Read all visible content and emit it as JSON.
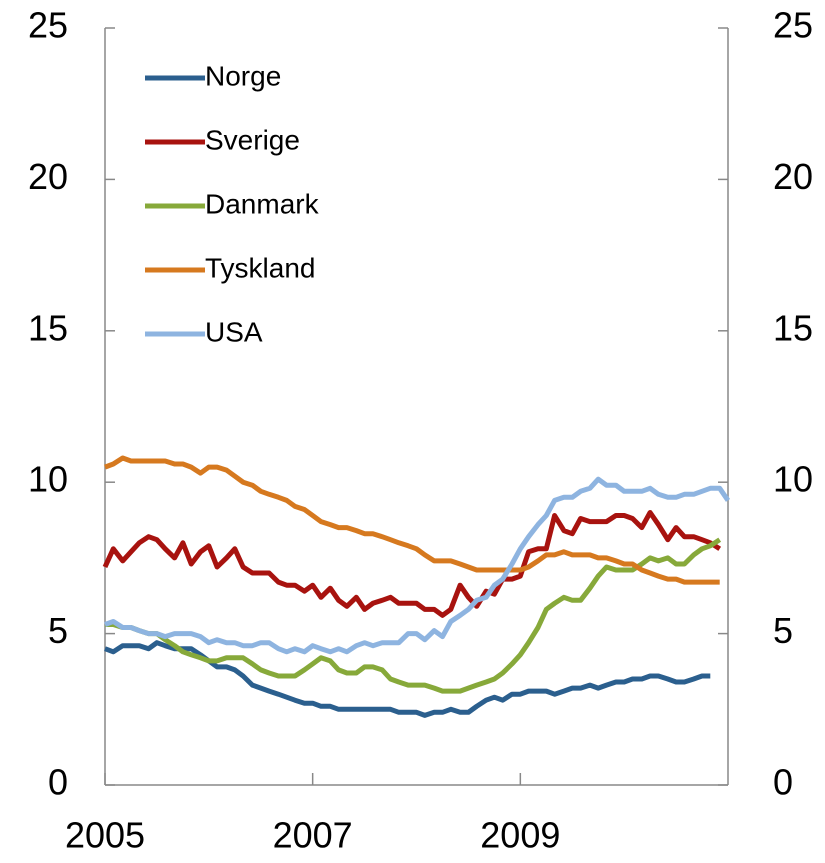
{
  "chart_data": {
    "type": "line",
    "x": [
      2005,
      2005.08,
      2005.17,
      2005.25,
      2005.33,
      2005.42,
      2005.5,
      2005.58,
      2005.67,
      2005.75,
      2005.83,
      2005.92,
      2006,
      2006.08,
      2006.17,
      2006.25,
      2006.33,
      2006.42,
      2006.5,
      2006.58,
      2006.67,
      2006.75,
      2006.83,
      2006.92,
      2007,
      2007.08,
      2007.17,
      2007.25,
      2007.33,
      2007.42,
      2007.5,
      2007.58,
      2007.67,
      2007.75,
      2007.83,
      2007.92,
      2008,
      2008.08,
      2008.17,
      2008.25,
      2008.33,
      2008.42,
      2008.5,
      2008.58,
      2008.67,
      2008.75,
      2008.83,
      2008.92,
      2009,
      2009.08,
      2009.17,
      2009.25,
      2009.33,
      2009.42,
      2009.5,
      2009.58,
      2009.67,
      2009.75,
      2009.83,
      2009.92,
      2010,
      2010.08,
      2010.17,
      2010.25,
      2010.33,
      2010.42,
      2010.5,
      2010.58,
      2010.67,
      2010.75,
      2010.83,
      2010.92,
      2011
    ],
    "series": [
      {
        "name": "Norge",
        "color": "#2b5f8e",
        "values": [
          4.5,
          4.4,
          4.6,
          4.6,
          4.6,
          4.5,
          4.7,
          4.6,
          4.5,
          4.5,
          4.5,
          4.3,
          4.1,
          3.9,
          3.9,
          3.8,
          3.6,
          3.3,
          3.2,
          3.1,
          3.0,
          2.9,
          2.8,
          2.7,
          2.7,
          2.6,
          2.6,
          2.5,
          2.5,
          2.5,
          2.5,
          2.5,
          2.5,
          2.5,
          2.4,
          2.4,
          2.4,
          2.3,
          2.4,
          2.4,
          2.5,
          2.4,
          2.4,
          2.6,
          2.8,
          2.9,
          2.8,
          3.0,
          3.0,
          3.1,
          3.1,
          3.1,
          3.0,
          3.1,
          3.2,
          3.2,
          3.3,
          3.2,
          3.3,
          3.4,
          3.4,
          3.5,
          3.5,
          3.6,
          3.6,
          3.5,
          3.4,
          3.4,
          3.5,
          3.6,
          3.6,
          null,
          null
        ]
      },
      {
        "name": "Sverige",
        "color": "#a8130f",
        "values": [
          7.2,
          7.8,
          7.4,
          7.7,
          8.0,
          8.2,
          8.1,
          7.8,
          7.5,
          8.0,
          7.3,
          7.7,
          7.9,
          7.2,
          7.5,
          7.8,
          7.2,
          7.0,
          7.0,
          7.0,
          6.7,
          6.6,
          6.6,
          6.4,
          6.6,
          6.2,
          6.5,
          6.1,
          5.9,
          6.2,
          5.8,
          6.0,
          6.1,
          6.2,
          6.0,
          6.0,
          6.0,
          5.8,
          5.8,
          5.6,
          5.8,
          6.6,
          6.2,
          5.9,
          6.4,
          6.3,
          6.8,
          6.8,
          6.9,
          7.7,
          7.8,
          7.8,
          8.9,
          8.4,
          8.3,
          8.8,
          8.7,
          8.7,
          8.7,
          8.9,
          8.9,
          8.8,
          8.5,
          9.0,
          8.6,
          8.1,
          8.5,
          8.2,
          8.2,
          8.1,
          8.0,
          7.8,
          null
        ]
      },
      {
        "name": "Danmark",
        "color": "#87a93a",
        "values": [
          5.3,
          5.3,
          5.2,
          5.2,
          5.1,
          5.0,
          5.0,
          4.8,
          4.6,
          4.4,
          4.3,
          4.2,
          4.1,
          4.1,
          4.2,
          4.2,
          4.2,
          4.0,
          3.8,
          3.7,
          3.6,
          3.6,
          3.6,
          3.8,
          4.0,
          4.2,
          4.1,
          3.8,
          3.7,
          3.7,
          3.9,
          3.9,
          3.8,
          3.5,
          3.4,
          3.3,
          3.3,
          3.3,
          3.2,
          3.1,
          3.1,
          3.1,
          3.2,
          3.3,
          3.4,
          3.5,
          3.7,
          4.0,
          4.3,
          4.7,
          5.2,
          5.8,
          6.0,
          6.2,
          6.1,
          6.1,
          6.5,
          6.9,
          7.2,
          7.1,
          7.1,
          7.1,
          7.3,
          7.5,
          7.4,
          7.5,
          7.3,
          7.3,
          7.6,
          7.8,
          7.9,
          8.1,
          null
        ]
      },
      {
        "name": "Tyskland",
        "color": "#d6791f",
        "values": [
          10.5,
          10.6,
          10.8,
          10.7,
          10.7,
          10.7,
          10.7,
          10.7,
          10.6,
          10.6,
          10.5,
          10.3,
          10.5,
          10.5,
          10.4,
          10.2,
          10.0,
          9.9,
          9.7,
          9.6,
          9.5,
          9.4,
          9.2,
          9.1,
          8.9,
          8.7,
          8.6,
          8.5,
          8.5,
          8.4,
          8.3,
          8.3,
          8.2,
          8.1,
          8.0,
          7.9,
          7.8,
          7.6,
          7.4,
          7.4,
          7.4,
          7.3,
          7.2,
          7.1,
          7.1,
          7.1,
          7.1,
          7.1,
          7.1,
          7.2,
          7.4,
          7.6,
          7.6,
          7.7,
          7.6,
          7.6,
          7.6,
          7.5,
          7.5,
          7.4,
          7.3,
          7.3,
          7.1,
          7.0,
          6.9,
          6.8,
          6.8,
          6.7,
          6.7,
          6.7,
          6.7,
          6.7,
          null
        ]
      },
      {
        "name": "USA",
        "color": "#8eb4e0",
        "values": [
          5.3,
          5.4,
          5.2,
          5.2,
          5.1,
          5.0,
          5.0,
          4.9,
          5.0,
          5.0,
          5.0,
          4.9,
          4.7,
          4.8,
          4.7,
          4.7,
          4.6,
          4.6,
          4.7,
          4.7,
          4.5,
          4.4,
          4.5,
          4.4,
          4.6,
          4.5,
          4.4,
          4.5,
          4.4,
          4.6,
          4.7,
          4.6,
          4.7,
          4.7,
          4.7,
          5.0,
          5.0,
          4.8,
          5.1,
          4.9,
          5.4,
          5.6,
          5.8,
          6.1,
          6.2,
          6.6,
          6.8,
          7.3,
          7.8,
          8.2,
          8.6,
          8.9,
          9.4,
          9.5,
          9.5,
          9.7,
          9.8,
          10.1,
          9.9,
          9.9,
          9.7,
          9.7,
          9.7,
          9.8,
          9.6,
          9.5,
          9.5,
          9.6,
          9.6,
          9.7,
          9.8,
          9.8,
          9.4
        ]
      }
    ],
    "xlim": [
      2005,
      2011
    ],
    "xticks": [
      2005,
      2007,
      2009
    ],
    "ylim": [
      0,
      25
    ],
    "yticks": [
      0,
      5,
      10,
      15,
      20,
      25
    ],
    "y2lim": [
      0,
      25
    ],
    "y2ticks": [
      0,
      5,
      10,
      15,
      20,
      25
    ],
    "legend": "top-left",
    "grid": false
  }
}
